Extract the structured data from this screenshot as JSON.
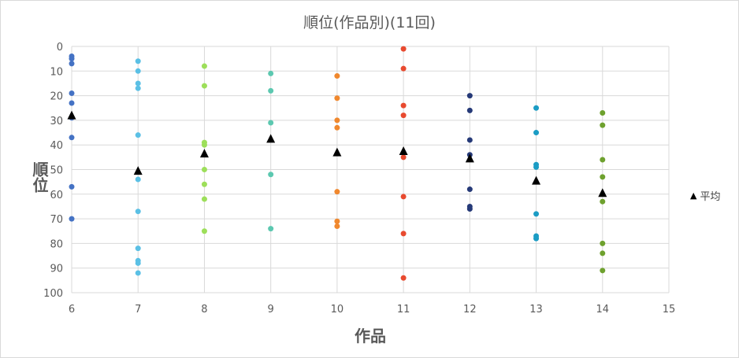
{
  "chart_data": {
    "type": "scatter",
    "title": "順位(作品別)(11回)",
    "xlabel": "作品",
    "ylabel": "順位",
    "xlim": [
      6,
      15
    ],
    "ylim": [
      0,
      100
    ],
    "y_reversed": true,
    "x_ticks": [
      6,
      7,
      8,
      9,
      10,
      11,
      12,
      13,
      14,
      15
    ],
    "y_ticks": [
      0,
      10,
      20,
      30,
      40,
      50,
      60,
      70,
      80,
      90,
      100
    ],
    "grid": true,
    "legend_position": "right",
    "series": [
      {
        "color": "#4472c4",
        "points": [
          [
            6,
            4
          ],
          [
            6,
            5
          ],
          [
            6,
            7
          ],
          [
            6,
            19
          ],
          [
            6,
            23
          ],
          [
            6,
            29
          ],
          [
            6,
            37
          ],
          [
            6,
            57
          ],
          [
            6,
            70
          ]
        ]
      },
      {
        "color": "#5bc0e5",
        "points": [
          [
            7,
            6
          ],
          [
            7,
            10
          ],
          [
            7,
            15
          ],
          [
            7,
            17
          ],
          [
            7,
            36
          ],
          [
            7,
            54
          ],
          [
            7,
            67
          ],
          [
            7,
            82
          ],
          [
            7,
            87
          ],
          [
            7,
            88
          ],
          [
            7,
            92
          ]
        ]
      },
      {
        "color": "#9ddf5a",
        "points": [
          [
            8,
            8
          ],
          [
            8,
            16
          ],
          [
            8,
            39
          ],
          [
            8,
            40
          ],
          [
            8,
            50
          ],
          [
            8,
            56
          ],
          [
            8,
            62
          ],
          [
            8,
            75
          ]
        ]
      },
      {
        "color": "#5cc8b0",
        "points": [
          [
            9,
            11
          ],
          [
            9,
            18
          ],
          [
            9,
            31
          ],
          [
            9,
            52
          ],
          [
            9,
            74
          ]
        ]
      },
      {
        "color": "#f0882e",
        "points": [
          [
            10,
            12
          ],
          [
            10,
            21
          ],
          [
            10,
            30
          ],
          [
            10,
            33
          ],
          [
            10,
            59
          ],
          [
            10,
            71
          ],
          [
            10,
            73
          ]
        ]
      },
      {
        "color": "#e84a2f",
        "points": [
          [
            11,
            1
          ],
          [
            11,
            9
          ],
          [
            11,
            24
          ],
          [
            11,
            28
          ],
          [
            11,
            45
          ],
          [
            11,
            61
          ],
          [
            11,
            76
          ],
          [
            11,
            94
          ]
        ]
      },
      {
        "color": "#263a78",
        "points": [
          [
            12,
            20
          ],
          [
            12,
            26
          ],
          [
            12,
            38
          ],
          [
            12,
            44
          ],
          [
            12,
            58
          ],
          [
            12,
            65
          ],
          [
            12,
            66
          ]
        ]
      },
      {
        "color": "#1b9cc4",
        "points": [
          [
            13,
            25
          ],
          [
            13,
            35
          ],
          [
            13,
            48
          ],
          [
            13,
            49
          ],
          [
            13,
            68
          ],
          [
            13,
            77
          ],
          [
            13,
            78
          ]
        ]
      },
      {
        "color": "#6ea12e",
        "points": [
          [
            14,
            27
          ],
          [
            14,
            32
          ],
          [
            14,
            46
          ],
          [
            14,
            53
          ],
          [
            14,
            63
          ],
          [
            14,
            80
          ],
          [
            14,
            84
          ],
          [
            14,
            91
          ]
        ]
      }
    ],
    "average": {
      "name": "平均",
      "marker": "triangle",
      "color": "#000000",
      "points": [
        [
          6,
          28
        ],
        [
          7,
          50.5
        ],
        [
          8,
          43.5
        ],
        [
          9,
          37.5
        ],
        [
          10,
          43
        ],
        [
          11,
          42.5
        ],
        [
          12,
          45.5
        ],
        [
          13,
          54.5
        ],
        [
          14,
          59.5
        ]
      ]
    }
  },
  "legend": {
    "marker_glyph": "▲",
    "label": "平均"
  }
}
